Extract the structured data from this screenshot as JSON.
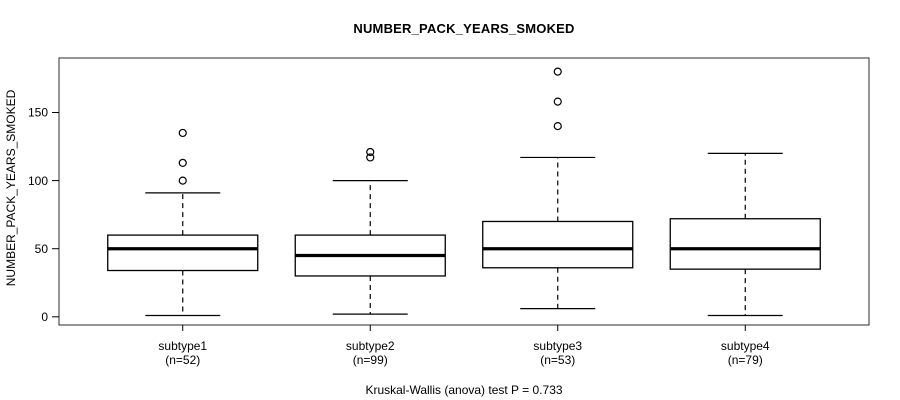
{
  "chart_data": {
    "type": "boxplot",
    "title": "NUMBER_PACK_YEARS_SMOKED",
    "ylabel": "NUMBER_PACK_YEARS_SMOKED",
    "xlabel": "",
    "footer": "Kruskal-Wallis (anova) test P = 0.733",
    "ylim": [
      -6,
      190
    ],
    "xlim": [
      0.34,
      4.66
    ],
    "y_ticks": [
      0,
      50,
      100,
      150
    ],
    "grid": false,
    "legend": "none",
    "box_width_units": 0.8,
    "cap_width_units": 0.4,
    "groups": [
      {
        "label": "subtype1",
        "n": 52,
        "n_label": "(n=52)",
        "position": 1,
        "whisker_low": 1,
        "q1": 34,
        "median": 50,
        "q3": 60,
        "whisker_high": 91,
        "outliers": [
          100,
          113,
          135
        ]
      },
      {
        "label": "subtype2",
        "n": 99,
        "n_label": "(n=99)",
        "position": 2,
        "whisker_low": 2,
        "q1": 30,
        "median": 45,
        "q3": 60,
        "whisker_high": 100,
        "outliers": [
          117,
          121
        ]
      },
      {
        "label": "subtype3",
        "n": 53,
        "n_label": "(n=53)",
        "position": 3,
        "whisker_low": 6,
        "q1": 36,
        "median": 50,
        "q3": 70,
        "whisker_high": 117,
        "outliers": [
          140,
          158,
          180
        ]
      },
      {
        "label": "subtype4",
        "n": 79,
        "n_label": "(n=79)",
        "position": 4,
        "whisker_low": 1,
        "q1": 35,
        "median": 50,
        "q3": 72,
        "whisker_high": 120,
        "outliers": []
      }
    ],
    "colors": {
      "stroke": "#000000",
      "box_fill": "#ffffff",
      "border": "#2b2b2b",
      "background": "#ffffff"
    }
  }
}
